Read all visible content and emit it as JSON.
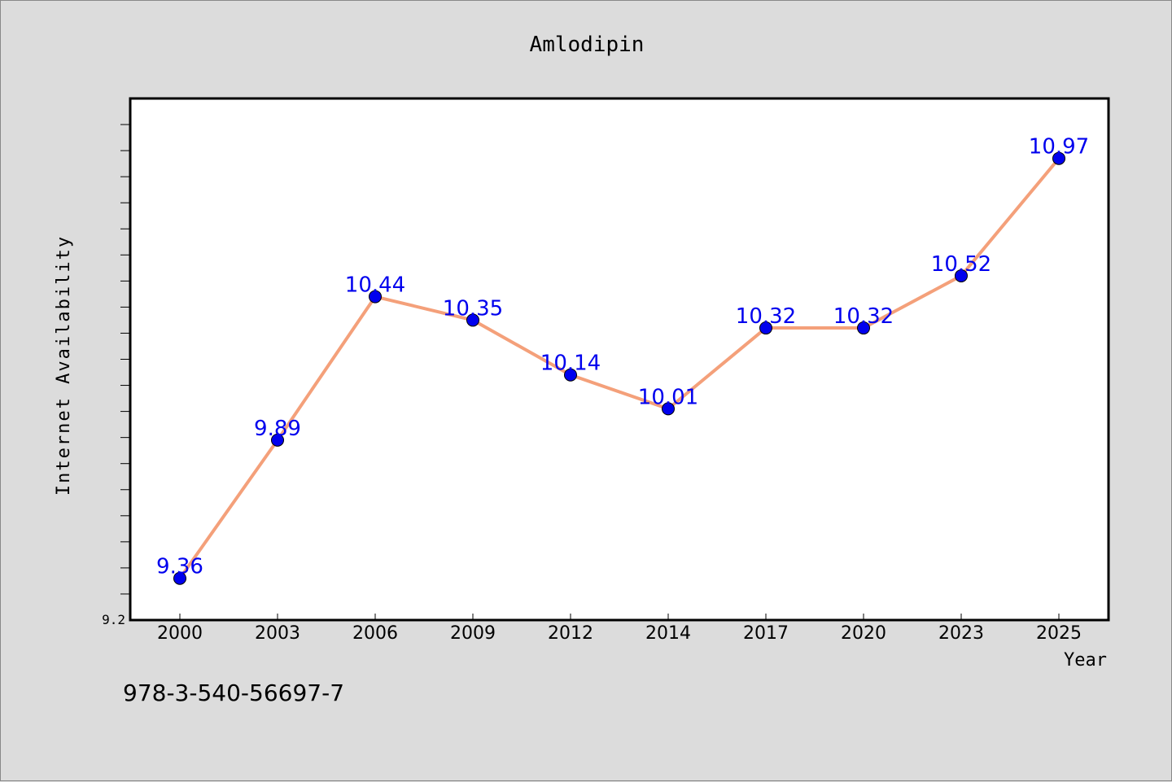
{
  "chart_data": {
    "type": "line",
    "title": "Amlodipin",
    "xlabel": "Year",
    "ylabel": "Internet Availability",
    "categories": [
      "2000",
      "2003",
      "2006",
      "2009",
      "2012",
      "2014",
      "2017",
      "2020",
      "2023",
      "2025"
    ],
    "series": [
      {
        "values": [
          9.36,
          9.89,
          10.44,
          10.35,
          10.14,
          10.01,
          10.32,
          10.32,
          10.52,
          10.97
        ],
        "data_labels": [
          "9.36",
          "9.89",
          "10.44",
          "10.35",
          "10.14",
          "10.01",
          "10.32",
          "10.32",
          "10.52",
          "10.97"
        ]
      }
    ],
    "ylim": [
      9.2,
      11.2
    ],
    "y_ticklabels": [
      {
        "value": 9.2,
        "label": "9.2"
      }
    ],
    "y_minor_tick_step": 0.1,
    "grid": false,
    "legend": "none",
    "colors": {
      "line": "#f4a07a",
      "marker": "#0000ee",
      "data_label": "#0000ee",
      "plot_background": "#ffffff",
      "figure_background": "#dcdcdc"
    }
  },
  "footer_code": "978-3-540-56697-7"
}
